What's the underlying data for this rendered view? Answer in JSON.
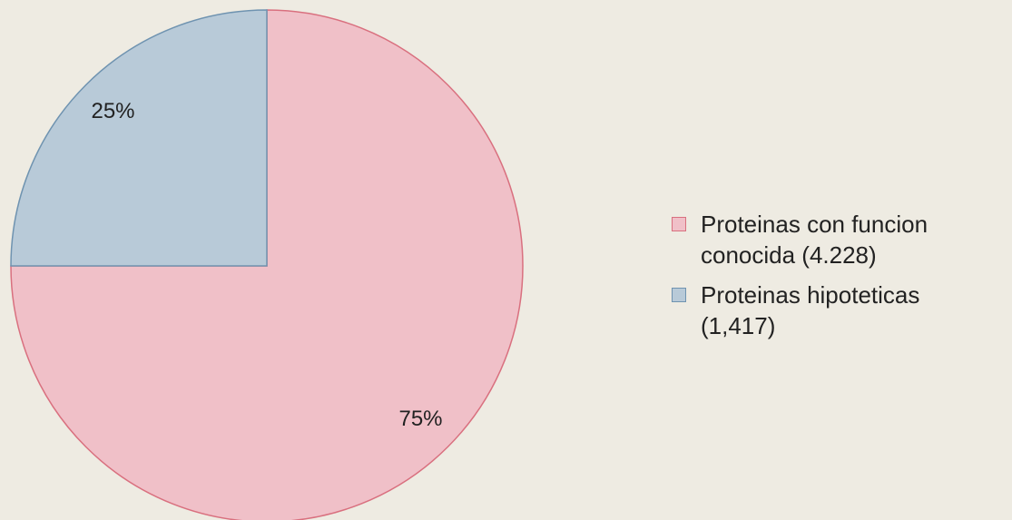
{
  "chart_data": {
    "type": "pie",
    "categories": [
      "Proteinas con funcion conocida (4.228)",
      "Proteinas hipoteticas (1,417)"
    ],
    "values": [
      75,
      25
    ],
    "value_labels": [
      "75%",
      "25%"
    ],
    "colors": [
      "#f0c0c8",
      "#b8cad8"
    ],
    "edge_colors": [
      "#d9707f",
      "#6f93b0"
    ],
    "legend": "right"
  }
}
